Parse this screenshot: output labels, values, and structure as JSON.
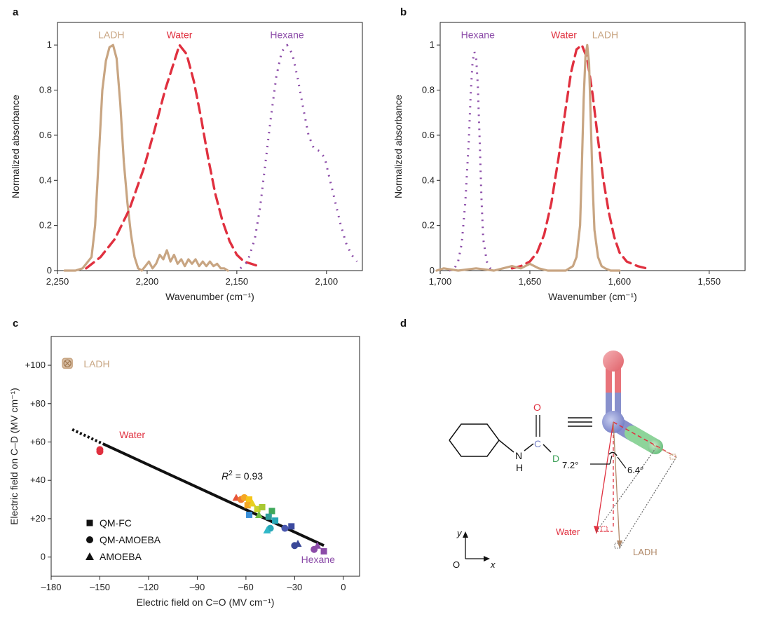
{
  "colors": {
    "ladh": "#C8A582",
    "water": "#E0303F",
    "hexane": "#8B4BA8",
    "black": "#111111",
    "carbon": "#7A84C8",
    "oxygen": "#E0303F",
    "deuterium": "#3FA05A"
  },
  "panels": {
    "a": "a",
    "b": "b",
    "c": "c",
    "d": "d"
  },
  "chart_data": [
    {
      "id": "a",
      "type": "line",
      "xlabel": "Wavenumber (cm⁻¹)",
      "ylabel": "Normalized absorbance",
      "xlim": [
        2250,
        2080
      ],
      "ylim": [
        0,
        1.1
      ],
      "x_ticks": [
        2250,
        2200,
        2150,
        2100
      ],
      "x_tick_labels": [
        "2,250",
        "2,200",
        "2,150",
        "2,100"
      ],
      "y_ticks": [
        0,
        0.2,
        0.4,
        0.6,
        0.8,
        1
      ],
      "y_tick_labels": [
        "0",
        "0.2",
        "0.4",
        "0.6",
        "0.8",
        "1"
      ],
      "series": [
        {
          "name": "LADH",
          "style": "solid",
          "color": "#C8A582",
          "x": [
            2246,
            2240,
            2236,
            2233,
            2231,
            2229,
            2227,
            2225,
            2223,
            2221,
            2219,
            2217,
            2215,
            2213,
            2211,
            2209,
            2207,
            2205,
            2203,
            2201,
            2199,
            2197,
            2195,
            2193,
            2191,
            2189,
            2187,
            2185,
            2183,
            2181,
            2179,
            2177,
            2175,
            2173,
            2171,
            2169,
            2167,
            2165,
            2163,
            2161,
            2159,
            2157,
            2155
          ],
          "y": [
            0,
            0,
            0.01,
            0.04,
            0.06,
            0.2,
            0.5,
            0.8,
            0.93,
            0.99,
            1.0,
            0.94,
            0.74,
            0.48,
            0.3,
            0.16,
            0.06,
            0.01,
            0,
            0.02,
            0.04,
            0.01,
            0.03,
            0.07,
            0.05,
            0.09,
            0.04,
            0.07,
            0.03,
            0.05,
            0.02,
            0.05,
            0.03,
            0.05,
            0.02,
            0.04,
            0.02,
            0.04,
            0.02,
            0.03,
            0.01,
            0.01,
            0
          ]
        },
        {
          "name": "Water",
          "style": "dashed",
          "color": "#E0303F",
          "x": [
            2234,
            2226,
            2218,
            2210,
            2202,
            2196,
            2190,
            2186,
            2182,
            2178,
            2174,
            2170,
            2166,
            2162,
            2158,
            2154,
            2150,
            2146,
            2142,
            2138
          ],
          "y": [
            0.01,
            0.06,
            0.14,
            0.27,
            0.45,
            0.62,
            0.8,
            0.9,
            1.0,
            0.96,
            0.84,
            0.68,
            0.5,
            0.34,
            0.22,
            0.13,
            0.07,
            0.04,
            0.03,
            0.02
          ]
        },
        {
          "name": "Hexane",
          "style": "dotted",
          "color": "#8B4BA8",
          "x": [
            2148,
            2144,
            2140,
            2137,
            2134,
            2131,
            2128,
            2125,
            2122,
            2119,
            2116,
            2113,
            2110,
            2107,
            2104,
            2101,
            2098,
            2095,
            2092,
            2089,
            2086,
            2083
          ],
          "y": [
            0.01,
            0.04,
            0.14,
            0.28,
            0.48,
            0.68,
            0.86,
            0.97,
            1.0,
            0.96,
            0.85,
            0.72,
            0.6,
            0.54,
            0.53,
            0.5,
            0.4,
            0.3,
            0.2,
            0.12,
            0.07,
            0.04
          ]
        }
      ],
      "labels": [
        {
          "text": "LADH",
          "x": 2220,
          "y": 1.03,
          "color": "#C8A582"
        },
        {
          "text": "Water",
          "x": 2182,
          "y": 1.03,
          "color": "#E0303F"
        },
        {
          "text": "Hexane",
          "x": 2122,
          "y": 1.03,
          "color": "#8B4BA8"
        }
      ]
    },
    {
      "id": "b",
      "type": "line",
      "xlabel": "Wavenumber (cm⁻¹)",
      "ylabel": "Normalized absorbance",
      "xlim": [
        1700,
        1530
      ],
      "ylim": [
        0,
        1.1
      ],
      "x_ticks": [
        1700,
        1650,
        1600,
        1550
      ],
      "x_tick_labels": [
        "1,700",
        "1,650",
        "1,600",
        "1,550"
      ],
      "y_ticks": [
        0,
        0.2,
        0.4,
        0.6,
        0.8,
        1
      ],
      "y_tick_labels": [
        "0",
        "0.2",
        "0.4",
        "0.6",
        "0.8",
        "1"
      ],
      "series": [
        {
          "name": "Hexane",
          "style": "dotted",
          "color": "#8B4BA8",
          "x": [
            1695,
            1692,
            1690,
            1688,
            1686,
            1684,
            1683,
            1682,
            1681,
            1680,
            1679,
            1678,
            1677,
            1676,
            1674,
            1672,
            1670
          ],
          "y": [
            0,
            0.01,
            0.04,
            0.12,
            0.3,
            0.58,
            0.78,
            0.92,
            0.97,
            0.95,
            0.82,
            0.58,
            0.32,
            0.14,
            0.04,
            0.01,
            0
          ]
        },
        {
          "name": "Water",
          "style": "dashed",
          "color": "#E0303F",
          "x": [
            1660,
            1655,
            1650,
            1646,
            1642,
            1638,
            1634,
            1630,
            1627,
            1624,
            1621,
            1618,
            1615,
            1612,
            1609,
            1606,
            1603,
            1600,
            1596,
            1590,
            1585
          ],
          "y": [
            0.01,
            0.02,
            0.04,
            0.08,
            0.16,
            0.3,
            0.5,
            0.72,
            0.88,
            0.98,
            1.0,
            0.94,
            0.78,
            0.58,
            0.4,
            0.26,
            0.15,
            0.08,
            0.04,
            0.02,
            0.01
          ]
        },
        {
          "name": "LADH",
          "style": "solid",
          "color": "#C8A582",
          "x": [
            1702,
            1698,
            1690,
            1680,
            1670,
            1665,
            1660,
            1655,
            1650,
            1645,
            1640,
            1635,
            1630,
            1626,
            1624,
            1622,
            1621,
            1620,
            1619,
            1618,
            1617,
            1616,
            1615,
            1614,
            1612,
            1610,
            1608,
            1605,
            1600
          ],
          "y": [
            0,
            0.01,
            0,
            0.01,
            0,
            0.01,
            0.02,
            0.01,
            0.03,
            0.01,
            0,
            0,
            0,
            0.02,
            0.06,
            0.2,
            0.46,
            0.76,
            0.95,
            1.0,
            0.92,
            0.66,
            0.38,
            0.18,
            0.06,
            0.02,
            0.01,
            0,
            0
          ]
        }
      ],
      "labels": [
        {
          "text": "Hexane",
          "x": 1679,
          "y": 1.03,
          "color": "#8B4BA8"
        },
        {
          "text": "Water",
          "x": 1631,
          "y": 1.03,
          "color": "#E0303F"
        },
        {
          "text": "LADH",
          "x": 1608,
          "y": 1.03,
          "color": "#C8A582"
        }
      ]
    },
    {
      "id": "c",
      "type": "scatter",
      "xlabel": "Electric field on C=O (MV cm⁻¹)",
      "ylabel": "Electric field on C–D (MV cm⁻¹)",
      "xlim": [
        -180,
        10
      ],
      "ylim": [
        -10,
        115
      ],
      "x_ticks": [
        -180,
        -150,
        -120,
        -90,
        -60,
        -30,
        0
      ],
      "x_tick_labels": [
        "–180",
        "–150",
        "–120",
        "–90",
        "–60",
        "–30",
        "0"
      ],
      "y_ticks": [
        0,
        20,
        40,
        60,
        80,
        100
      ],
      "y_tick_labels": [
        "0",
        "+20",
        "+40",
        "+60",
        "+80",
        "+100"
      ],
      "fit_line": {
        "x1": -148,
        "y1": 59,
        "x2": -12,
        "y2": 6,
        "ext_x": -167,
        "ext_y": 66.5
      },
      "r2_text": "= 0.93",
      "r2_prefix": "R",
      "r2_sup": "2",
      "points": [
        {
          "x": -150,
          "y": 56,
          "m": "circle",
          "c": "#E0303F"
        },
        {
          "x": -150,
          "y": 55,
          "m": "circle",
          "c": "#E0303F"
        },
        {
          "x": -66,
          "y": 31,
          "m": "triangle",
          "c": "#E8553A"
        },
        {
          "x": -63,
          "y": 30,
          "m": "circle",
          "c": "#F07A30"
        },
        {
          "x": -61,
          "y": 31,
          "m": "circle",
          "c": "#F5A623"
        },
        {
          "x": -58,
          "y": 30,
          "m": "square",
          "c": "#F5C518"
        },
        {
          "x": -59,
          "y": 27,
          "m": "square",
          "c": "#F5A623"
        },
        {
          "x": -56,
          "y": 28,
          "m": "triangle",
          "c": "#E8D020"
        },
        {
          "x": -53,
          "y": 25,
          "m": "square",
          "c": "#C9D22A"
        },
        {
          "x": -50,
          "y": 26,
          "m": "square",
          "c": "#A8C832"
        },
        {
          "x": -52,
          "y": 22,
          "m": "triangle",
          "c": "#6FBE44"
        },
        {
          "x": -44,
          "y": 24,
          "m": "square",
          "c": "#3FA85A"
        },
        {
          "x": -58,
          "y": 22,
          "m": "square",
          "c": "#3A8FD8"
        },
        {
          "x": -46,
          "y": 21,
          "m": "square",
          "c": "#2E9E9A"
        },
        {
          "x": -42,
          "y": 19,
          "m": "square",
          "c": "#28A8B8"
        },
        {
          "x": -45,
          "y": 15,
          "m": "circle",
          "c": "#28A8B8"
        },
        {
          "x": -47,
          "y": 14,
          "m": "triangle",
          "c": "#30B8C8"
        },
        {
          "x": -36,
          "y": 15,
          "m": "circle",
          "c": "#4A58B0"
        },
        {
          "x": -32,
          "y": 16,
          "m": "square",
          "c": "#3C4AA0"
        },
        {
          "x": -28,
          "y": 7,
          "m": "triangle",
          "c": "#3A4898"
        },
        {
          "x": -30,
          "y": 6,
          "m": "circle",
          "c": "#3A4898"
        },
        {
          "x": -18,
          "y": 4,
          "m": "circle",
          "c": "#8B4BA8"
        },
        {
          "x": -16,
          "y": 6,
          "m": "triangle",
          "c": "#8B4BA8"
        },
        {
          "x": -12,
          "y": 3,
          "m": "square",
          "c": "#8B4BA8"
        }
      ],
      "ladh_point": {
        "x": -170,
        "y": 101
      },
      "labels": [
        {
          "text": "LADH",
          "x": -160,
          "y": 99,
          "color": "#C8A582"
        },
        {
          "text": "Water",
          "x": -138,
          "y": 62,
          "color": "#E0303F"
        },
        {
          "text": "Hexane",
          "x": -26,
          "y": -3,
          "color": "#8B4BA8"
        }
      ],
      "legend": [
        {
          "marker": "square",
          "label": "QM-FC"
        },
        {
          "marker": "circle",
          "label": "QM-AMOEBA"
        },
        {
          "marker": "triangle",
          "label": "AMOEBA"
        }
      ]
    }
  ],
  "diagram_d": {
    "atom_o": "O",
    "atom_c": "C",
    "atom_d": "D",
    "atom_n": "N",
    "atom_h": "H",
    "angle_1": "7.2°",
    "angle_2": "6.4°",
    "vector_water": "Water",
    "vector_ladh": "LADH",
    "axis_y": "y",
    "axis_x": "x",
    "origin": "O"
  }
}
